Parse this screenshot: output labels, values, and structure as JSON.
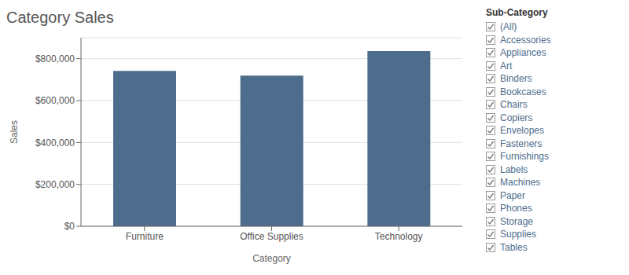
{
  "chart_data": {
    "type": "bar",
    "title": "Category Sales",
    "xlabel": "Category",
    "ylabel": "Sales",
    "categories": [
      "Furniture",
      "Office Supplies",
      "Technology"
    ],
    "values": [
      742000,
      719000,
      836000
    ],
    "color": "#4e6d8c",
    "ylim": [
      0,
      900000
    ],
    "yticks": [
      {
        "value": 0,
        "label": "$0"
      },
      {
        "value": 200000,
        "label": "$200,000"
      },
      {
        "value": 400000,
        "label": "$400,000"
      },
      {
        "value": 600000,
        "label": "$600,000"
      },
      {
        "value": 800000,
        "label": "$800,000"
      }
    ],
    "grid": true,
    "annotations": [
      "Sub-Category",
      "(All)",
      "Accessories",
      "Appliances",
      "Art",
      "Binders",
      "Bookcases",
      "Chairs",
      "Copiers",
      "Envelopes",
      "Fasteners",
      "Furnishings",
      "Labels",
      "Machines",
      "Paper",
      "Phones",
      "Storage",
      "Supplies",
      "Tables"
    ]
  }
}
